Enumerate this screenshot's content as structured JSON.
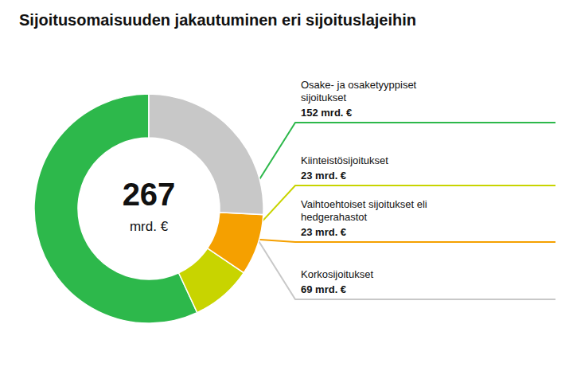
{
  "chart_data": {
    "type": "donut",
    "title": "Sijoitusomaisuuden jakautuminen eri sijoituslajeihin",
    "categories": [
      "Osake- ja osaketyyppiset\nsijoitukset",
      "Kiinteistösijoitukset",
      "Vaihtoehtoiset sijoitukset eli\nhedgerahastot",
      "Korkosijoitukset"
    ],
    "values": [
      152,
      23,
      23,
      69
    ],
    "value_labels": [
      "152 mrd. €",
      "23 mrd. €",
      "23 mrd. €",
      "69 mrd. €"
    ],
    "colors": [
      "#2DB84B",
      "#C8D400",
      "#F5A000",
      "#C8C8C8"
    ],
    "data_labels": true,
    "annotations": [
      "267",
      "mrd. €"
    ]
  }
}
